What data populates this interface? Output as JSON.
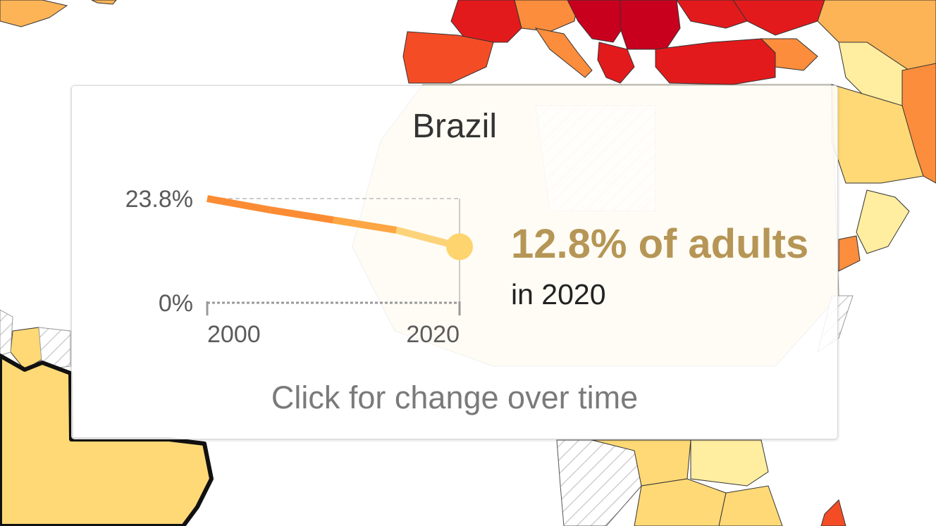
{
  "tooltip": {
    "country": "Brazil",
    "headline": "12.8% of adults",
    "subline": "in 2020",
    "footer": "Click for change over time"
  },
  "chart_data": {
    "type": "line",
    "x_ticks": [
      "2000",
      "2020"
    ],
    "y_ticks": [
      "0%",
      "23.8%"
    ],
    "ylim": [
      0,
      23.8
    ],
    "xlim": [
      2000,
      2020
    ],
    "series": [
      {
        "x": [
          2000,
          2005,
          2010,
          2015,
          2019,
          2020
        ],
        "y": [
          23.8,
          21.2,
          18.9,
          16.6,
          13.6,
          12.8
        ]
      }
    ],
    "highlight": {
      "x": 2020,
      "y": 12.8
    }
  },
  "colors": {
    "line_high": "#fb8c33",
    "line_mid": "#fda643",
    "line_low": "#fdd37a",
    "dot": "#fdd46e",
    "headline": "#b69656",
    "map_dark_red": "#c8001e",
    "map_red": "#e31a1c",
    "map_orange_red": "#f44d26",
    "map_orange": "#fb8d3c",
    "map_light_orange": "#fdb456",
    "map_yellow": "#fed976",
    "map_pale": "#ffeda0"
  }
}
